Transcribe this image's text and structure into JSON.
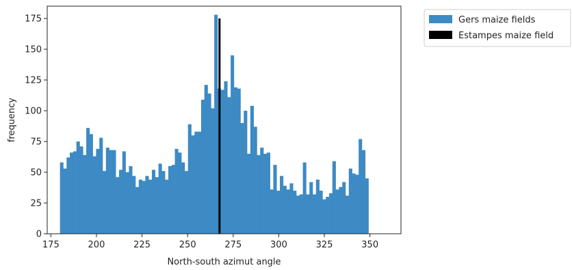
{
  "chart_data": {
    "type": "bar",
    "xlabel": "North-south azimut angle",
    "ylabel": "frequency",
    "xlim": [
      173,
      367
    ],
    "ylim": [
      0,
      185
    ],
    "xticks": [
      175,
      200,
      225,
      250,
      275,
      300,
      325,
      350
    ],
    "yticks": [
      0,
      25,
      50,
      75,
      100,
      125,
      150,
      175
    ],
    "grid": false,
    "legend_position": "outside-top-right",
    "series": [
      {
        "name": "Gers maize fields",
        "color": "#3d8ac4",
        "bin_start": 180,
        "bin_width": 1.8,
        "values": [
          58,
          53,
          62,
          66,
          67,
          75,
          71,
          64,
          86,
          81,
          63,
          69,
          78,
          51,
          70,
          68,
          68,
          46,
          52,
          67,
          50,
          55,
          47,
          38,
          44,
          43,
          47,
          44,
          52,
          46,
          57,
          51,
          44,
          55,
          56,
          69,
          66,
          58,
          51,
          89,
          80,
          83,
          83,
          109,
          121,
          114,
          102,
          178,
          118,
          117,
          124,
          111,
          145,
          119,
          118,
          90,
          100,
          65,
          104,
          87,
          64,
          70,
          65,
          66,
          36,
          56,
          35,
          47,
          39,
          36,
          41,
          35,
          31,
          32,
          58,
          32,
          42,
          32,
          44,
          35,
          28,
          30,
          33,
          59,
          36,
          38,
          42,
          31,
          53,
          49,
          48,
          77,
          68,
          45
        ]
      },
      {
        "name": "Estampes maize field",
        "color": "#000000",
        "x": 267.5,
        "value": 175
      }
    ]
  }
}
